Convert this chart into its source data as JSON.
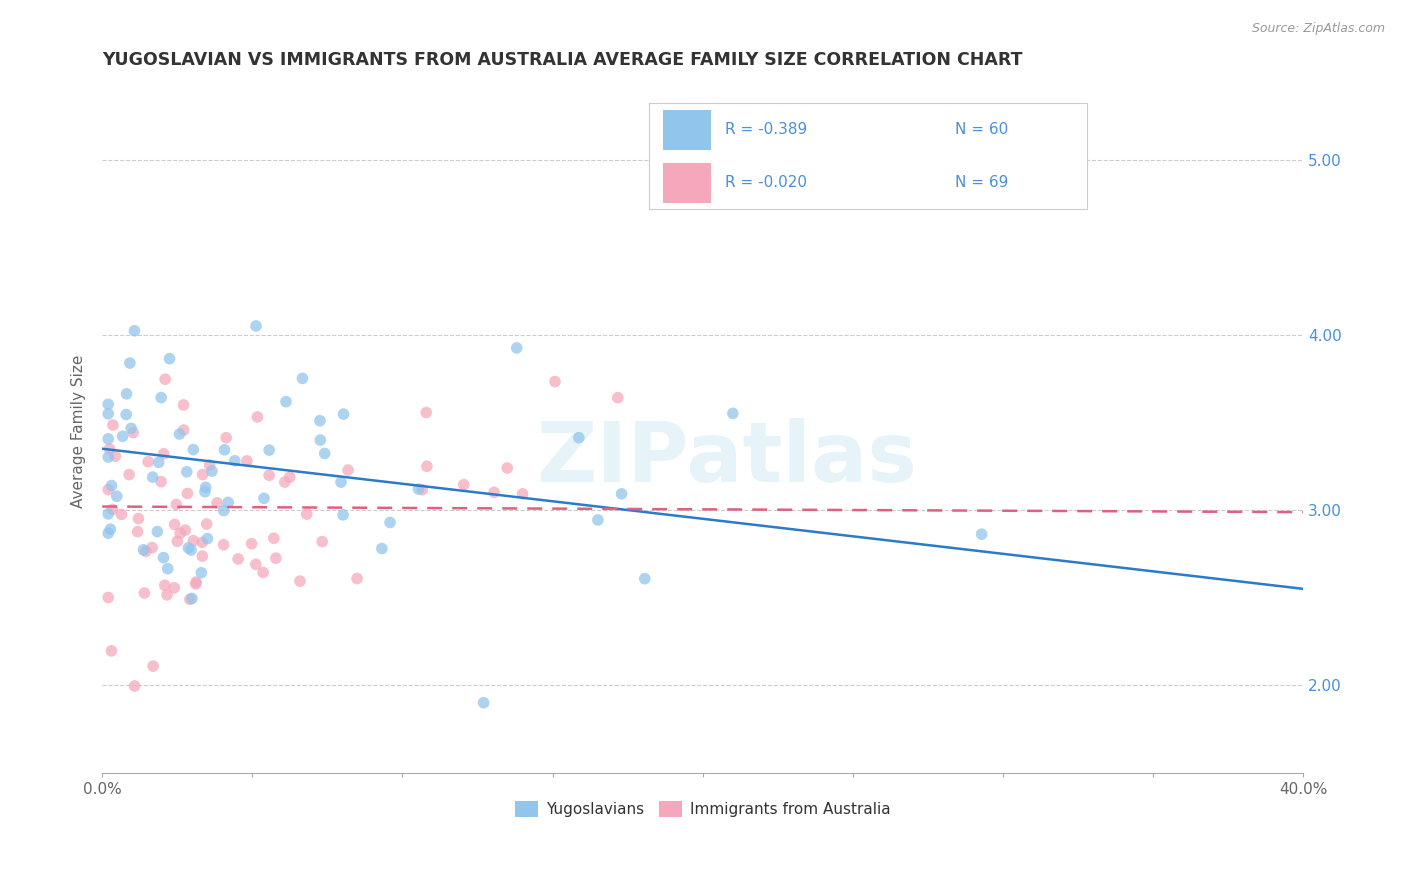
{
  "title": "YUGOSLAVIAN VS IMMIGRANTS FROM AUSTRALIA AVERAGE FAMILY SIZE CORRELATION CHART",
  "source_text": "Source: ZipAtlas.com",
  "ylabel": "Average Family Size",
  "xlim": [
    0.0,
    0.4
  ],
  "ylim": [
    1.5,
    5.4
  ],
  "yticks": [
    2.0,
    3.0,
    4.0,
    5.0
  ],
  "xticks": [
    0.0,
    0.05,
    0.1,
    0.15,
    0.2,
    0.25,
    0.3,
    0.35,
    0.4
  ],
  "yticklabels_right": [
    "2.00",
    "3.00",
    "4.00",
    "5.00"
  ],
  "blue_color": "#92C5EC",
  "pink_color": "#F5A8BC",
  "blue_line_color": "#2B7BC8",
  "pink_line_color": "#E06080",
  "label_color": "#4A90D9",
  "title_color": "#333333",
  "grid_color": "#CCCCCC",
  "legend_R_blue": "R = -0.389",
  "legend_N_blue": "N = 60",
  "legend_R_pink": "R = -0.020",
  "legend_N_pink": "N = 69",
  "legend_label_blue": "Yugoslavians",
  "legend_label_pink": "Immigrants from Australia",
  "watermark": "ZIPatlas",
  "blue_N": 60,
  "pink_N": 69,
  "blue_R": -0.389,
  "pink_R": -0.02,
  "blue_intercept": 3.35,
  "blue_slope": -2.0,
  "pink_intercept": 3.02,
  "pink_slope": -0.08
}
